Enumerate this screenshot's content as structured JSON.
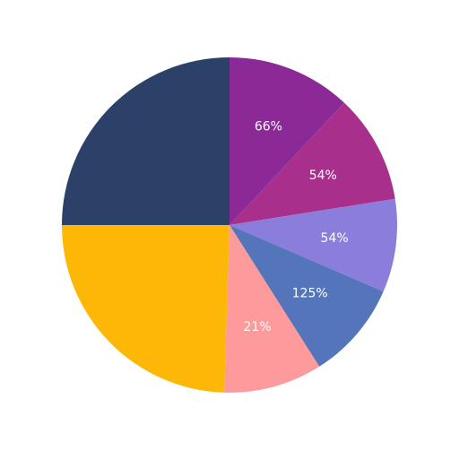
{
  "chart_data": {
    "type": "pie",
    "start_angle_deg": 0,
    "direction": "clockwise",
    "slices": [
      {
        "value": 12,
        "color": "#8b2a96",
        "label": "66%"
      },
      {
        "value": 10.5,
        "color": "#a8308c",
        "label": "54%"
      },
      {
        "value": 9,
        "color": "#8a7ddc",
        "label": "54%"
      },
      {
        "value": 9.5,
        "color": "#5575bb",
        "label": "125%"
      },
      {
        "value": 9.5,
        "color": "#fd9a9b",
        "label": "21%"
      },
      {
        "value": 24.5,
        "color": "#fdb707",
        "label": ""
      },
      {
        "value": 25,
        "color": "#2b4168",
        "label": ""
      }
    ]
  }
}
